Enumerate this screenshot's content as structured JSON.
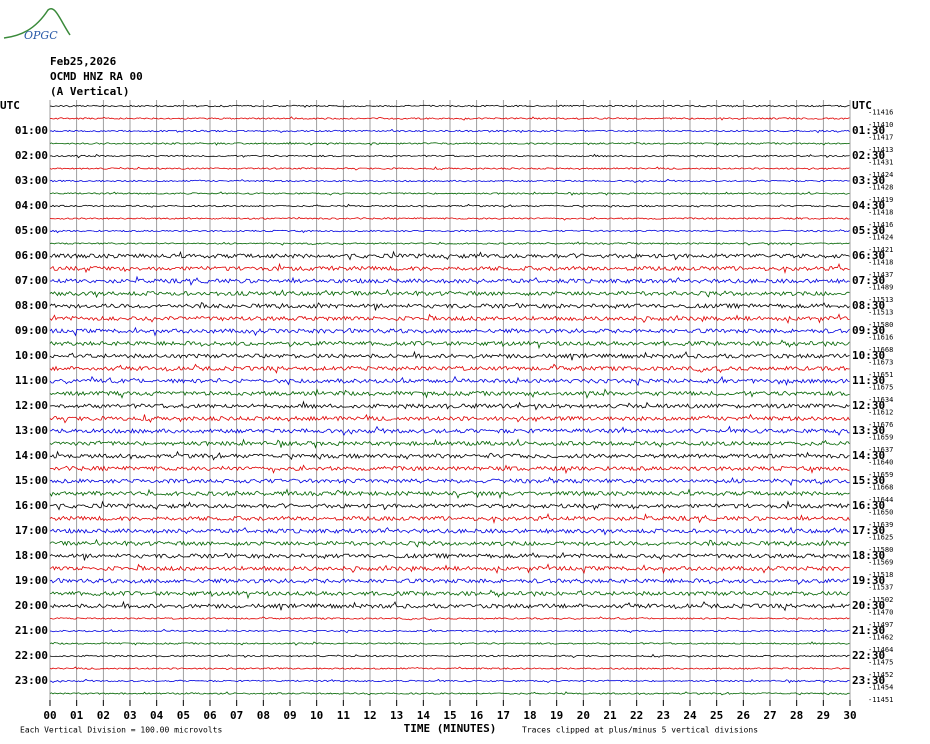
{
  "chart_data": {
    "type": "helicorder",
    "logo": "OPGC",
    "date": "Feb25,2026",
    "station": "OCMD HNZ RA 00",
    "component": "(A Vertical)",
    "left_labels": [
      "UTC",
      "01:00",
      "02:00",
      "03:00",
      "04:00",
      "05:00",
      "06:00",
      "07:00",
      "08:00",
      "09:00",
      "10:00",
      "11:00",
      "12:00",
      "13:00",
      "14:00",
      "15:00",
      "16:00",
      "17:00",
      "18:00",
      "19:00",
      "20:00",
      "21:00",
      "22:00",
      "23:00"
    ],
    "right_labels": [
      "UTC",
      "01:30",
      "02:30",
      "03:30",
      "04:30",
      "05:30",
      "06:30",
      "07:30",
      "08:30",
      "09:30",
      "10:30",
      "11:30",
      "12:30",
      "13:30",
      "14:30",
      "15:30",
      "16:30",
      "17:30",
      "18:30",
      "19:30",
      "20:30",
      "21:30",
      "22:30",
      "23:30"
    ],
    "offsets": [
      -11416,
      -11410,
      -11417,
      -11413,
      -11431,
      -11424,
      -11428,
      -11419,
      -11418,
      -11416,
      -11424,
      -11421,
      -11418,
      -11437,
      -11489,
      -11513,
      -11513,
      -11580,
      -11616,
      -11668,
      -11673,
      -11651,
      -11675,
      -11634,
      -11612,
      -11676,
      -11659,
      -11637,
      -11640,
      -11659,
      -11668,
      -11644,
      -11650,
      -11639,
      -11625,
      -11580,
      -11569,
      -11518,
      -11537,
      -11502,
      -11470,
      -11497,
      -11462,
      -11464,
      -11475,
      -11452,
      -11454,
      -11451
    ],
    "colors": [
      "#000000",
      "#e00000",
      "#0000e0",
      "#006400"
    ],
    "xlim": [
      0,
      30
    ],
    "xticks": [
      {
        "value": 0,
        "label": "00"
      },
      {
        "value": 1,
        "label": "01"
      },
      {
        "value": 2,
        "label": "02"
      },
      {
        "value": 3,
        "label": "03"
      },
      {
        "value": 4,
        "label": "04"
      },
      {
        "value": 5,
        "label": "05"
      },
      {
        "value": 6,
        "label": "06"
      },
      {
        "value": 7,
        "label": "07"
      },
      {
        "value": 8,
        "label": "08"
      },
      {
        "value": 9,
        "label": "09"
      },
      {
        "value": 10,
        "label": "10"
      },
      {
        "value": 11,
        "label": "11"
      },
      {
        "value": 12,
        "label": "12"
      },
      {
        "value": 13,
        "label": "13"
      },
      {
        "value": 14,
        "label": "14"
      },
      {
        "value": 15,
        "label": "15"
      },
      {
        "value": 16,
        "label": "16"
      },
      {
        "value": 17,
        "label": "17"
      },
      {
        "value": 18,
        "label": "18"
      },
      {
        "value": 19,
        "label": "19"
      },
      {
        "value": 20,
        "label": "20"
      },
      {
        "value": 21,
        "label": "21"
      },
      {
        "value": 22,
        "label": "22"
      },
      {
        "value": 23,
        "label": "23"
      },
      {
        "value": 24,
        "label": "24"
      },
      {
        "value": 25,
        "label": "25"
      },
      {
        "value": 26,
        "label": "26"
      },
      {
        "value": 27,
        "label": "27"
      },
      {
        "value": 28,
        "label": "28"
      },
      {
        "value": 29,
        "label": "29"
      },
      {
        "value": 30,
        "label": "30"
      }
    ],
    "xlabel": "TIME (MINUTES)",
    "scale_note": "Each Vertical Division =  100.00 microvolts",
    "clip_note": "Traces clipped at plus/minus 5 vertical divisions"
  }
}
